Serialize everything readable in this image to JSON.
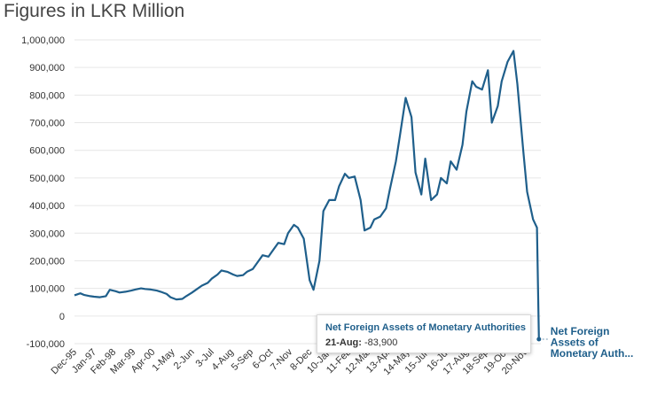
{
  "chart_data": {
    "type": "line",
    "title": "Figures in LKR Million",
    "xlabel": "",
    "ylabel": "",
    "ylim": [
      -100000,
      1000000
    ],
    "y_ticks": [
      -100000,
      0,
      100000,
      200000,
      300000,
      400000,
      500000,
      600000,
      700000,
      800000,
      900000,
      1000000
    ],
    "y_tick_labels": [
      "-100,000",
      "0",
      "100,000",
      "200,000",
      "300,000",
      "400,000",
      "500,000",
      "600,000",
      "700,000",
      "800,000",
      "900,000",
      "1,000,000"
    ],
    "x_tick_labels": [
      "Dec-95",
      "Jan-97",
      "Feb-98",
      "Mar-99",
      "Apr-00",
      "1-May",
      "2-Jun",
      "3-Jul",
      "4-Aug",
      "5-Sep",
      "6-Oct",
      "7-Nov",
      "8-Dec",
      "10-Jan",
      "11-Feb",
      "12-Mar",
      "13-Apr",
      "14-May",
      "15-Jun",
      "16-Jul",
      "17-Aug",
      "18-Sep",
      "19-Oct",
      "20-Nov"
    ],
    "grid": true,
    "series": [
      {
        "name": "Net Foreign Assets of Monetary Authorities",
        "end_label": [
          "Net Foreign",
          "Assets of",
          "Monetary Auth..."
        ],
        "color": "#1f5f8b",
        "x": [
          0,
          0.3,
          0.5,
          0.8,
          1.0,
          1.3,
          1.6,
          1.8,
          2.1,
          2.3,
          2.6,
          2.9,
          3.1,
          3.4,
          3.6,
          3.9,
          4.2,
          4.4,
          4.7,
          4.9,
          5.2,
          5.5,
          5.7,
          6.0,
          6.2,
          6.5,
          6.8,
          7.0,
          7.3,
          7.5,
          7.8,
          8.1,
          8.3,
          8.6,
          8.8,
          9.1,
          9.4,
          9.6,
          9.9,
          10.1,
          10.4,
          10.7,
          10.9,
          11.2,
          11.4,
          11.7,
          12.0,
          12.2,
          12.5,
          12.7,
          13.0,
          13.3,
          13.5,
          13.8,
          14.0,
          14.3,
          14.6,
          14.8,
          15.1,
          15.3,
          15.6,
          15.9,
          16.1,
          16.4,
          16.6,
          16.9,
          17.2,
          17.4,
          17.7,
          17.9,
          18.2,
          18.5,
          18.7,
          19.0,
          19.2,
          19.5,
          19.8,
          20.0,
          20.3,
          20.5,
          20.8,
          21.1,
          21.3,
          21.6,
          21.8,
          22.1,
          22.4,
          22.6,
          22.9,
          23.1,
          23.4,
          23.6,
          23.7
        ],
        "values": [
          75000,
          82000,
          76000,
          72000,
          70000,
          68000,
          72000,
          95000,
          90000,
          85000,
          88000,
          92000,
          96000,
          100000,
          98000,
          96000,
          92000,
          88000,
          80000,
          68000,
          60000,
          62000,
          72000,
          85000,
          95000,
          110000,
          120000,
          135000,
          150000,
          165000,
          160000,
          150000,
          145000,
          148000,
          160000,
          170000,
          200000,
          220000,
          215000,
          235000,
          265000,
          260000,
          300000,
          330000,
          320000,
          280000,
          130000,
          95000,
          200000,
          380000,
          420000,
          420000,
          470000,
          515000,
          500000,
          505000,
          420000,
          310000,
          320000,
          350000,
          360000,
          390000,
          460000,
          560000,
          650000,
          790000,
          720000,
          520000,
          440000,
          570000,
          420000,
          440000,
          500000,
          480000,
          560000,
          530000,
          620000,
          740000,
          850000,
          830000,
          820000,
          890000,
          700000,
          760000,
          850000,
          920000,
          960000,
          840000,
          600000,
          450000,
          350000,
          320000,
          -83900
        ]
      }
    ],
    "tooltip": {
      "series": "Net Foreign Assets of Monetary Authorities",
      "date": "21-Aug:",
      "value": "-83,900"
    }
  }
}
